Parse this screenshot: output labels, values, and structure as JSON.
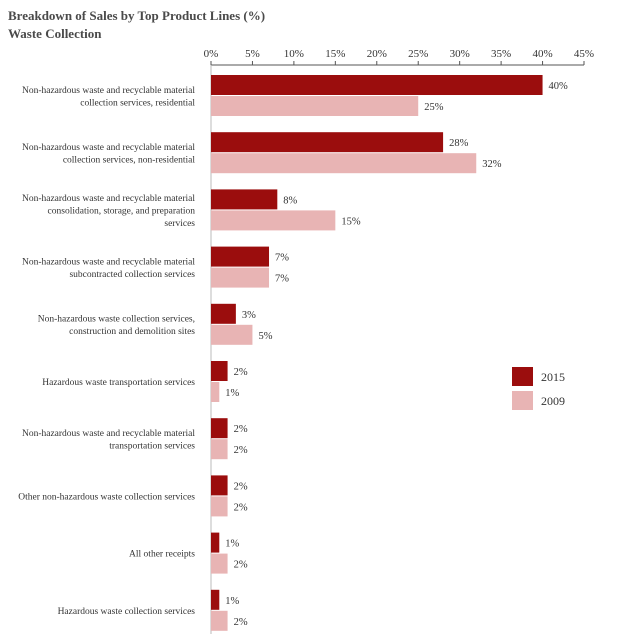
{
  "chart_data": {
    "type": "bar",
    "orientation": "horizontal",
    "title": "Breakdown of Sales by Top Product Lines (%)",
    "subtitle": "Waste Collection",
    "xlim": [
      0,
      45
    ],
    "ticks": [
      0,
      5,
      10,
      15,
      20,
      25,
      30,
      35,
      40,
      45
    ],
    "tick_labels": [
      "0%",
      "5%",
      "10%",
      "15%",
      "20%",
      "25%",
      "30%",
      "35%",
      "40%",
      "45%"
    ],
    "xaxis_position": "top",
    "grid": false,
    "legend_position": "right",
    "categories": [
      [
        "Non-hazardous waste and recyclable material",
        "collection services, residential"
      ],
      [
        "Non-hazardous waste and recyclable material",
        "collection services, non-residential"
      ],
      [
        "Non-hazardous waste and recyclable material",
        "consolidation, storage, and preparation",
        "services"
      ],
      [
        "Non-hazardous waste and recyclable material",
        "subcontracted collection services"
      ],
      [
        "Non-hazardous waste collection services,",
        "construction and demolition sites"
      ],
      [
        "Hazardous waste transportation services"
      ],
      [
        "Non-hazardous waste and recyclable material",
        "transportation services"
      ],
      [
        "Other non-hazardous waste collection services"
      ],
      [
        "All other receipts"
      ],
      [
        "Hazardous waste collection services"
      ]
    ],
    "series": [
      {
        "name": "2015",
        "color": "#9b0d0d",
        "values": [
          40,
          28,
          8,
          7,
          3,
          2,
          2,
          2,
          1,
          1
        ],
        "labels": [
          "40%",
          "28%",
          "8%",
          "7%",
          "3%",
          "2%",
          "2%",
          "2%",
          "1%",
          "1%"
        ]
      },
      {
        "name": "2009",
        "color": "#e8b4b4",
        "values": [
          25,
          32,
          15,
          7,
          5,
          1,
          2,
          2,
          2,
          2
        ],
        "labels": [
          "25%",
          "32%",
          "15%",
          "7%",
          "5%",
          "1%",
          "2%",
          "2%",
          "2%",
          "2%"
        ]
      }
    ]
  }
}
